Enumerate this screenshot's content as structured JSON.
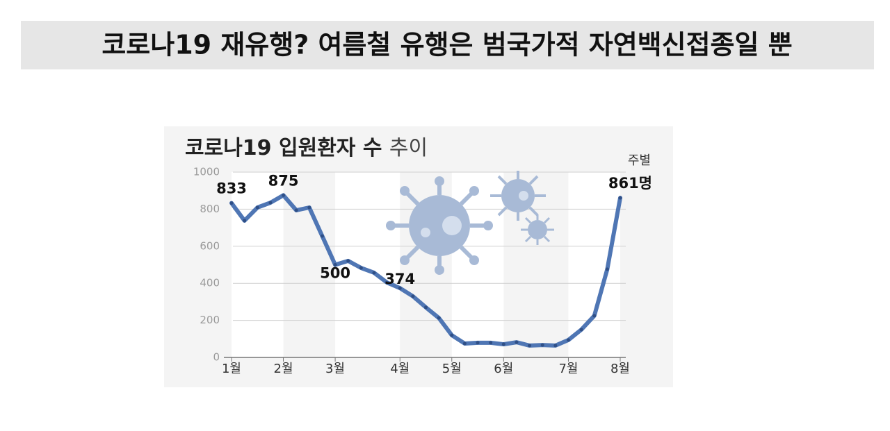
{
  "header": {
    "title": "코로나19 재유행? 여름철 유행은 범국가적 자연백신접종일 뿐"
  },
  "chart_data": {
    "type": "line",
    "title": "코로나19 입원환자 수",
    "title_light": "추이",
    "subtitle": "주별",
    "categories": [
      "1월",
      null,
      null,
      null,
      "2월",
      null,
      null,
      null,
      "3월",
      null,
      null,
      null,
      null,
      "4월",
      null,
      null,
      null,
      "5월",
      null,
      null,
      null,
      "6월",
      null,
      null,
      null,
      null,
      "7월",
      null,
      null,
      null,
      "8월"
    ],
    "values": [
      833,
      738,
      809,
      835,
      875,
      794,
      809,
      655,
      500,
      521,
      483,
      457,
      404,
      374,
      330,
      270,
      213,
      120,
      75,
      79,
      79,
      71,
      82,
      64,
      67,
      64,
      94,
      150,
      225,
      476,
      861
    ],
    "value_labels": [
      "833",
      null,
      null,
      null,
      "875",
      null,
      null,
      null,
      "500",
      null,
      null,
      null,
      null,
      "374",
      null,
      null,
      null,
      null,
      null,
      null,
      null,
      null,
      null,
      null,
      null,
      null,
      null,
      null,
      null,
      null,
      "861명"
    ],
    "color": "#4f76b4",
    "ylim": [
      0,
      1000
    ],
    "yticks": [
      0,
      200,
      400,
      600,
      800,
      1000
    ],
    "grid": true
  }
}
